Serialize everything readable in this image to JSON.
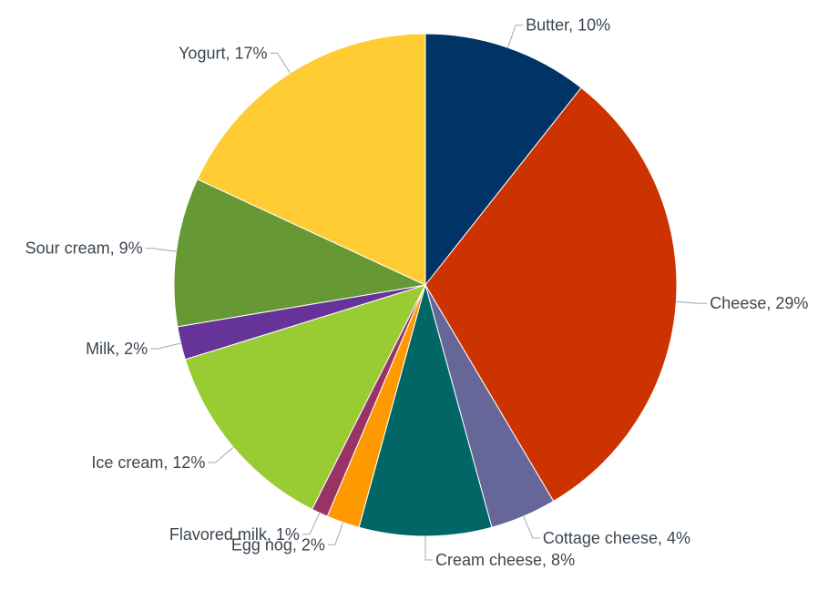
{
  "chart_data": {
    "type": "pie",
    "slices": [
      {
        "name": "Butter",
        "value": 10,
        "label": "Butter, 10%",
        "color": "#003366"
      },
      {
        "name": "Cheese",
        "value": 29,
        "label": "Cheese, 29%",
        "color": "#cc3300"
      },
      {
        "name": "Cottage cheese",
        "value": 4,
        "label": "Cottage cheese, 4%",
        "color": "#666699"
      },
      {
        "name": "Cream cheese",
        "value": 8,
        "label": "Cream cheese, 8%",
        "color": "#006666"
      },
      {
        "name": "Egg nog",
        "value": 2,
        "label": "Egg nog, 2%",
        "color": "#ff9900"
      },
      {
        "name": "Flavored milk",
        "value": 1,
        "label": "Flavored milk, 1%",
        "color": "#993366"
      },
      {
        "name": "Ice cream",
        "value": 12,
        "label": "Ice cream, 12%",
        "color": "#99cc33"
      },
      {
        "name": "Milk",
        "value": 2,
        "label": "Milk, 2%",
        "color": "#663399"
      },
      {
        "name": "Sour cream",
        "value": 9,
        "label": "Sour cream, 9%",
        "color": "#669933"
      },
      {
        "name": "Yogurt",
        "value": 17,
        "label": "Yogurt, 17%",
        "color": "#ffcc33"
      }
    ],
    "start_angle_deg": 0,
    "direction": "clockwise",
    "legend": "none"
  }
}
